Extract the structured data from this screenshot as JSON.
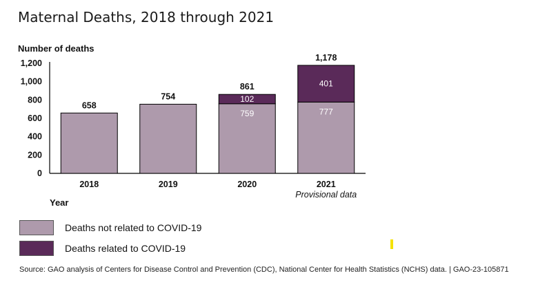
{
  "header": {
    "title": "Maternal Deaths, 2018 through 2021"
  },
  "chart_data": {
    "type": "bar",
    "stacked": true,
    "title": "Maternal Deaths, 2018 through 2021",
    "ylabel": "Number of deaths",
    "xlabel": "Year",
    "ylim": [
      0,
      1200
    ],
    "yticks": [
      0,
      200,
      400,
      600,
      800,
      1000,
      1200
    ],
    "ytick_labels": [
      "0",
      "200",
      "400",
      "600",
      "800",
      "1,000",
      "1,200"
    ],
    "categories": [
      "2018",
      "2019",
      "2020",
      "2021"
    ],
    "category_notes": [
      "",
      "",
      "",
      "Provisional data"
    ],
    "series": [
      {
        "name": "Deaths not related to COVID-19",
        "color": "#ae9aac",
        "values": [
          658,
          754,
          759,
          777
        ]
      },
      {
        "name": "Deaths related to COVID-19",
        "color": "#5a2a59",
        "values": [
          0,
          0,
          102,
          401
        ]
      }
    ],
    "totals": [
      658,
      754,
      861,
      1178
    ],
    "total_labels": [
      "658",
      "754",
      "861",
      "1,178"
    ],
    "segment_labels": [
      [
        "",
        "",
        "759",
        "777"
      ],
      [
        "",
        "",
        "102",
        "401"
      ]
    ]
  },
  "legend": [
    {
      "label": "Deaths not related to COVID-19",
      "color": "#ae9aac"
    },
    {
      "label": "Deaths related to COVID-19",
      "color": "#5a2a59"
    }
  ],
  "source": "Source: GAO analysis of Centers for Disease Control and Prevention (CDC), National Center for Health Statistics (NCHS) data.  |  GAO-23-105871"
}
